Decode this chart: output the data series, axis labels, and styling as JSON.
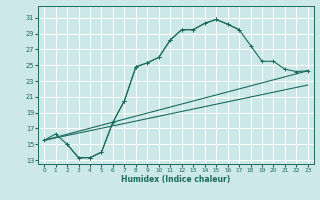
{
  "xlabel": "Humidex (Indice chaleur)",
  "ylabel": "",
  "xlim": [
    -0.5,
    23.5
  ],
  "ylim": [
    12.5,
    32.5
  ],
  "yticks": [
    13,
    15,
    17,
    19,
    21,
    23,
    25,
    27,
    29,
    31
  ],
  "xticks": [
    0,
    1,
    2,
    3,
    4,
    5,
    6,
    7,
    8,
    9,
    10,
    11,
    12,
    13,
    14,
    15,
    16,
    17,
    18,
    19,
    20,
    21,
    22,
    23
  ],
  "bg_color": "#cce8e8",
  "line_color": "#1a6b5a",
  "grid_color": "#ffffff",
  "curve1_x": [
    0,
    1,
    2,
    3,
    4,
    5,
    6,
    7,
    8,
    9,
    10,
    11,
    12,
    13,
    14,
    15,
    16,
    17
  ],
  "curve1_y": [
    15.5,
    16.3,
    15.0,
    13.3,
    13.3,
    14.0,
    17.8,
    20.5,
    24.8,
    25.3,
    26.0,
    28.2,
    29.5,
    29.5,
    30.3,
    30.8,
    30.2,
    29.5
  ],
  "curve2_x": [
    2,
    3,
    4,
    5,
    6,
    7,
    8,
    9,
    10,
    11,
    12,
    13,
    14,
    15,
    16,
    17,
    18,
    19,
    20,
    21,
    22,
    23
  ],
  "curve2_y": [
    15.0,
    13.3,
    13.3,
    14.0,
    17.8,
    20.5,
    24.8,
    25.3,
    26.0,
    28.2,
    29.5,
    29.5,
    30.3,
    30.8,
    30.2,
    29.5,
    27.5,
    25.5,
    25.5,
    24.5,
    24.2,
    24.3
  ],
  "line3_x": [
    0,
    23
  ],
  "line3_y": [
    15.5,
    24.3
  ],
  "line4_x": [
    0,
    23
  ],
  "line4_y": [
    15.5,
    22.5
  ]
}
